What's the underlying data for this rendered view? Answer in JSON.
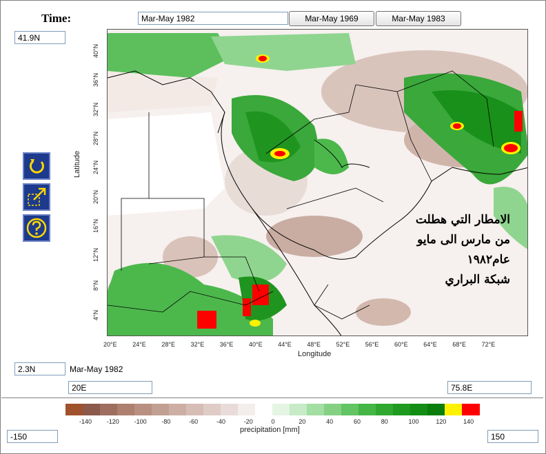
{
  "time": {
    "label": "Time:",
    "value": "Mar-May 1982",
    "buttons": [
      "Mar-May 1969",
      "Mar-May 1983"
    ]
  },
  "bounds": {
    "lat_max": "41.9N",
    "lat_min": "2.3N",
    "lon_min": "20E",
    "lon_max": "75.8E",
    "period_caption": "Mar-May 1982"
  },
  "tools": [
    "refresh-icon",
    "zoom-extent-icon",
    "help-icon"
  ],
  "map": {
    "x_ticks": [
      "20°E",
      "24°E",
      "28°E",
      "32°E",
      "36°E",
      "40°E",
      "44°E",
      "48°E",
      "52°E",
      "56°E",
      "60°E",
      "64°E",
      "68°E",
      "72°E"
    ],
    "y_ticks": [
      "40°N",
      "36°N",
      "32°N",
      "28°N",
      "24°N",
      "20°N",
      "16°N",
      "12°N",
      "8°N",
      "4°N"
    ],
    "xlabel": "Longitude",
    "ylabel": "Latitude",
    "annotation": [
      "الامطار التي هطلت",
      "من مارس الى مايو",
      "عام١٩٨٢",
      "شبكة البراري"
    ]
  },
  "colorbar": {
    "ticks": [
      "-140",
      "-120",
      "-100",
      "-80",
      "-60",
      "-40",
      "-20",
      "0",
      "20",
      "40",
      "60",
      "80",
      "100",
      "120",
      "140"
    ],
    "label": "precipitation [mm]",
    "colors": [
      "#a0522d",
      "#8b5a4a",
      "#9e6e60",
      "#ad8070",
      "#b98f82",
      "#c29f93",
      "#cdaea4",
      "#d6bdb5",
      "#dfccc6",
      "#e9dcd8",
      "#f3edeb",
      "#ffffff",
      "#e4f5e4",
      "#c6ebc6",
      "#a3dea3",
      "#84d184",
      "#62c462",
      "#45b645",
      "#30a830",
      "#1f9a1f",
      "#128c12",
      "#0a7d0a",
      "#fff200",
      "#ff0000"
    ],
    "min_field": "-150",
    "max_field": "150"
  }
}
